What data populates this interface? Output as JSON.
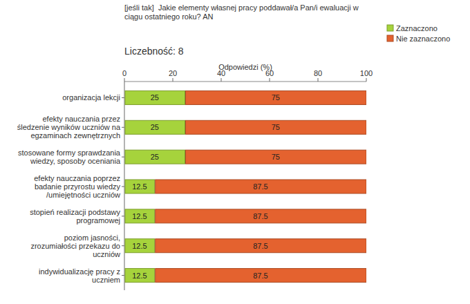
{
  "chart_data": {
    "type": "bar",
    "orientation": "horizontal",
    "stacked": true,
    "data_labels": true,
    "grid": false,
    "legend": "top-right",
    "title": "[jeśli tak]  Jakie elementy własnej pracy poddawał/a Pan/i ewaluacji w ciągu ostatniego roku? AN",
    "subtitle": "Liczebność: 8",
    "x_label": "Odpowiedzi (%)",
    "categories": [
      "organizacja lekcji",
      "efekty nauczania przez śledzenie wyników uczniów na egzaminach zewnętrznych",
      "stosowane formy sprawdzania wiedzy, sposoby oceniania",
      "efekty nauczania poprzez badanie przyrostu wiedzy /umiejętności uczniów",
      "stopień realizacji podstawy programowej",
      "poziom jasności, zrozumiałości przekazu do uczniów",
      "indywidualizację pracy z uczniem"
    ],
    "series": [
      {
        "name": "Zaznaczono",
        "color": "#a6d33c",
        "values": [
          25,
          25,
          25,
          12.5,
          12.5,
          12.5,
          12.5
        ]
      },
      {
        "name": "Nie zaznaczono",
        "color": "#e4622f",
        "values": [
          75,
          75,
          75,
          87.5,
          87.5,
          87.5,
          87.5
        ]
      }
    ],
    "xlim": [
      0,
      100
    ],
    "xticks": [
      0,
      20,
      40,
      60,
      80,
      100
    ]
  }
}
